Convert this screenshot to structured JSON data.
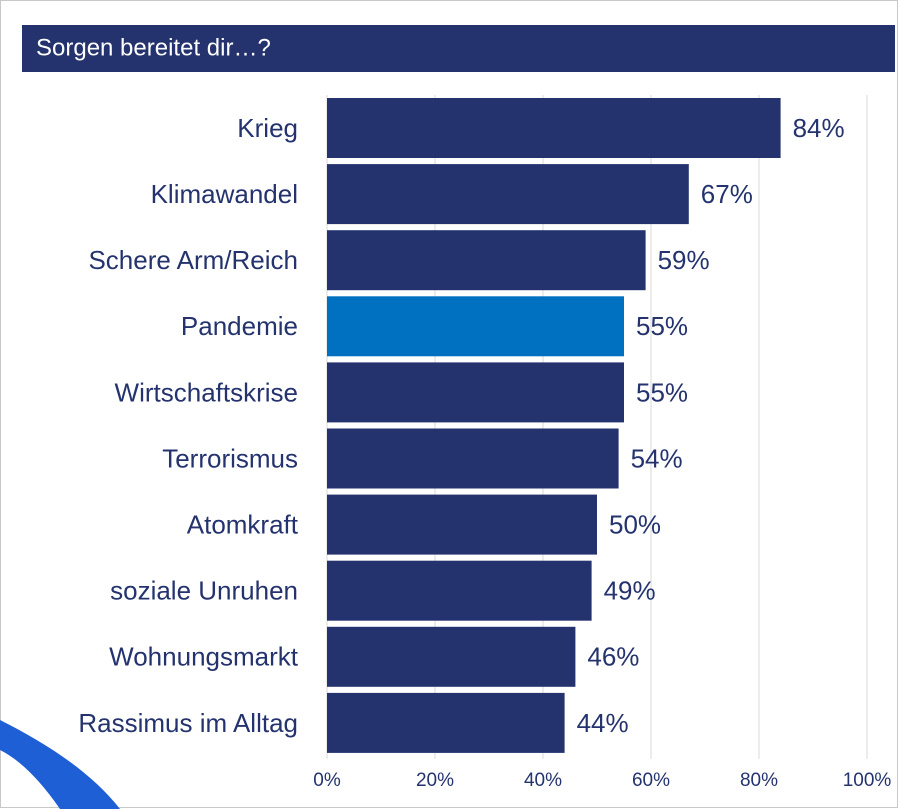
{
  "chart_data": {
    "type": "bar",
    "title": "Sorgen bereitet dir…?",
    "categories": [
      "Krieg",
      "Klimawandel",
      "Schere Arm/Reich",
      "Pandemie",
      "Wirtschaftskrise",
      "Terrorismus",
      "Atomkraft",
      "soziale Unruhen",
      "Wohnungsmarkt",
      "Rassimus im Alltag"
    ],
    "values": [
      84,
      67,
      59,
      55,
      55,
      54,
      50,
      49,
      46,
      44
    ],
    "value_labels": [
      "84%",
      "67%",
      "59%",
      "55%",
      "55%",
      "54%",
      "50%",
      "49%",
      "46%",
      "44%"
    ],
    "colors": [
      "#24336e",
      "#24336e",
      "#24336e",
      "#0070c0",
      "#24336e",
      "#24336e",
      "#24336e",
      "#24336e",
      "#24336e",
      "#24336e"
    ],
    "xlim": [
      0,
      100
    ],
    "xticks": [
      {
        "value": 0,
        "label": "0%"
      },
      {
        "value": 20,
        "label": "20%"
      },
      {
        "value": 40,
        "label": "40%"
      },
      {
        "value": 60,
        "label": "60%"
      },
      {
        "value": 80,
        "label": "80%"
      },
      {
        "value": 100,
        "label": "100%"
      }
    ],
    "grid": true
  }
}
